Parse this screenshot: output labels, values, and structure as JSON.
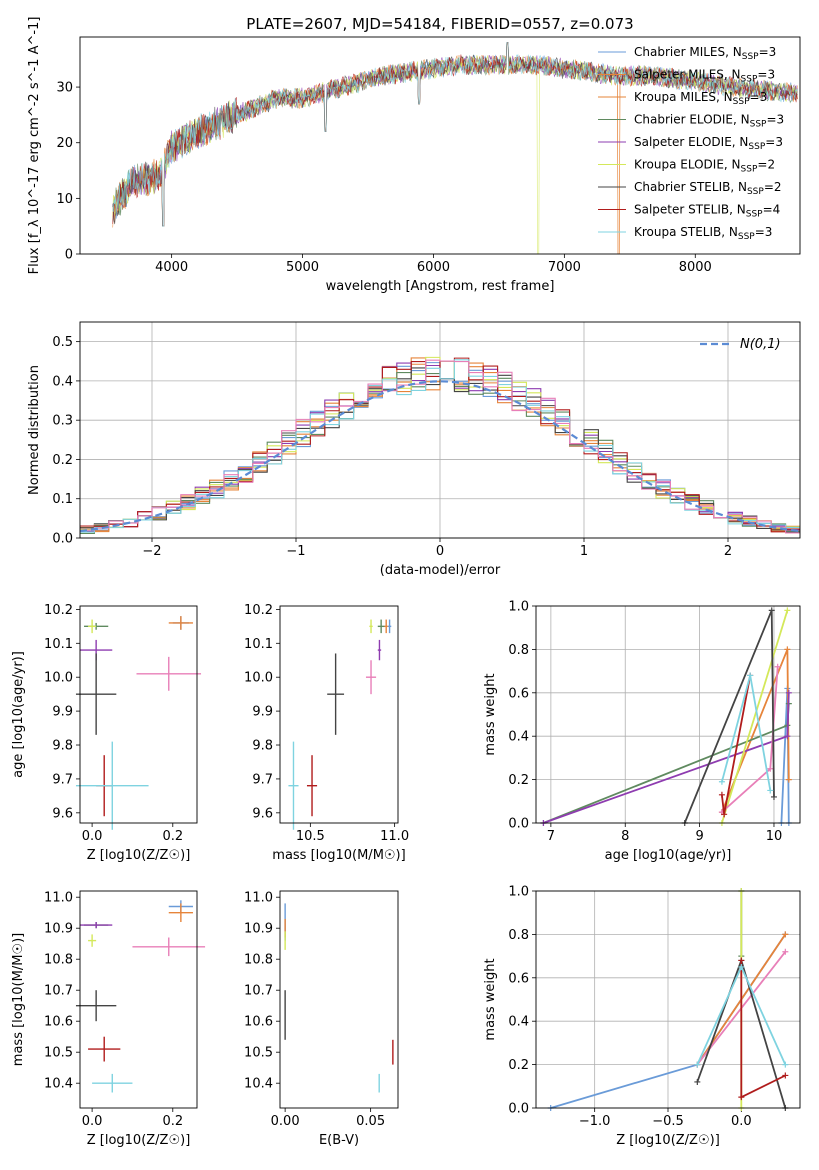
{
  "figure": {
    "title": "PLATE=2607, MJD=54184, FIBERID=0557, z=0.073"
  },
  "colors": {
    "Chabrier MILES": "#6a9bd8",
    "Salpeter MILES": "#e6843a",
    "Kroupa MILES": "#e6843a",
    "Chabrier ELODIE": "#5f8a5f",
    "Salpeter ELODIE": "#8e3cb0",
    "Kroupa ELODIE": "#d4e85a",
    "Chabrier STELIB": "#444444",
    "Salpeter STELIB": "#b01c1c",
    "Kroupa STELIB": "#7fd3e0",
    "pink": "#e87fb8",
    "normal": "#5b8bd4"
  },
  "chart_data": [
    {
      "id": "spectrum",
      "type": "line",
      "xlabel": "wavelength [Angstrom, rest frame]",
      "ylabel": "Flux [f_λ 10^-17 erg cm^-2 s^-1 A^-1]",
      "xlim": [
        3300,
        8800
      ],
      "ylim": [
        0,
        39
      ],
      "xticks": [
        4000,
        5000,
        6000,
        7000,
        8000
      ],
      "yticks": [
        0,
        10,
        20,
        30
      ],
      "legend_position": "top-right",
      "series": [
        {
          "name": "Chabrier MILES, N_SSP=3"
        },
        {
          "name": "Salpeter MILES, N_SSP=3"
        },
        {
          "name": "Kroupa MILES, N_SSP=3"
        },
        {
          "name": "Chabrier ELODIE, N_SSP=3"
        },
        {
          "name": "Salpeter ELODIE, N_SSP=3"
        },
        {
          "name": "Kroupa ELODIE, N_SSP=2"
        },
        {
          "name": "Chabrier STELIB, N_SSP=2"
        },
        {
          "name": "Salpeter STELIB, N_SSP=4"
        },
        {
          "name": "Kroupa STELIB, N_SSP=3"
        }
      ],
      "continuum": {
        "x": [
          3550,
          3700,
          3900,
          4000,
          4200,
          4500,
          4800,
          5000,
          5300,
          5600,
          5900,
          6200,
          6500,
          6800,
          7100,
          7400,
          7700,
          8000,
          8300,
          8700
        ],
        "y": [
          8,
          13,
          14,
          19,
          22,
          25,
          28,
          28,
          30,
          32,
          33,
          34,
          34,
          34,
          33,
          32,
          32,
          31,
          30,
          29
        ]
      },
      "line_features": [
        {
          "x": 3933,
          "y": 5
        },
        {
          "x": 5175,
          "y": 22
        },
        {
          "x": 5890,
          "y": 27
        },
        {
          "x": 6563,
          "y": 38
        },
        {
          "x": 6800,
          "y": 0,
          "series_color": "#d4e85a"
        },
        {
          "x": 7415,
          "y": 0,
          "series_color": "#e6843a"
        }
      ]
    },
    {
      "id": "residuals",
      "type": "step",
      "xlabel": "(data-model)/error",
      "ylabel": "Normed distribution",
      "xlim": [
        -2.5,
        2.5
      ],
      "ylim": [
        0,
        0.55
      ],
      "xticks": [
        -2,
        -1,
        0,
        1,
        2
      ],
      "yticks": [
        0.0,
        0.1,
        0.2,
        0.3,
        0.4,
        0.5
      ],
      "grid": true,
      "legend_position": "top-right",
      "normal_label": "N(0,1)",
      "bin_edges_start": -2.5,
      "bin_width": 0.1
    },
    {
      "id": "age_vs_Z",
      "type": "scatter-errorbar",
      "xlabel": "Z [log10(Z/Z☉)]",
      "ylabel": "age  [log10(age/yr)]",
      "xlim": [
        -0.03,
        0.26
      ],
      "ylim": [
        9.57,
        10.21
      ],
      "xticks": [
        0.0,
        0.2
      ],
      "yticks": [
        9.6,
        9.7,
        9.8,
        9.9,
        10.0,
        10.1,
        10.2
      ],
      "points": [
        {
          "series": "Chabrier MILES",
          "x": 0.22,
          "y": 10.16,
          "xerr": 0.02,
          "yerr": 0.02
        },
        {
          "series": "Salpeter MILES",
          "x": 0.22,
          "y": 10.16,
          "xerr": 0.03,
          "yerr": 0.02
        },
        {
          "series": "Chabrier ELODIE",
          "x": 0.01,
          "y": 10.15,
          "xerr": 0.03,
          "yerr": 0.01
        },
        {
          "series": "Salpeter ELODIE",
          "x": 0.01,
          "y": 10.08,
          "xerr": 0.04,
          "yerr": 0.03
        },
        {
          "series": "Kroupa ELODIE",
          "x": 0.0,
          "y": 10.15,
          "xerr": 0.01,
          "yerr": 0.02
        },
        {
          "series": "pink",
          "x": 0.19,
          "y": 10.01,
          "xerr": 0.08,
          "yerr": 0.05
        },
        {
          "series": "Chabrier STELIB",
          "x": 0.01,
          "y": 9.95,
          "xerr": 0.05,
          "yerr": 0.12
        },
        {
          "series": "Salpeter STELIB",
          "x": 0.03,
          "y": 9.68,
          "xerr": 0.02,
          "yerr": 0.09
        },
        {
          "series": "Kroupa STELIB",
          "x": 0.05,
          "y": 9.68,
          "xerr": 0.09,
          "yerr": 0.13
        }
      ]
    },
    {
      "id": "age_vs_mass",
      "type": "scatter-errorbar",
      "xlabel": "mass [log10(M/M☉)]",
      "xlim": [
        10.32,
        11.02
      ],
      "ylim": [
        9.57,
        10.21
      ],
      "xticks": [
        10.5,
        11.0
      ],
      "yticks": [
        9.6,
        9.7,
        9.8,
        9.9,
        10.0,
        10.1,
        10.2
      ],
      "points": [
        {
          "series": "Chabrier MILES",
          "x": 10.97,
          "y": 10.15,
          "xerr": 0.01,
          "yerr": 0.02
        },
        {
          "series": "Salpeter MILES",
          "x": 10.95,
          "y": 10.15,
          "xerr": 0.01,
          "yerr": 0.02
        },
        {
          "series": "Chabrier ELODIE",
          "x": 10.92,
          "y": 10.15,
          "xerr": 0.02,
          "yerr": 0.02
        },
        {
          "series": "Salpeter ELODIE",
          "x": 10.91,
          "y": 10.08,
          "xerr": 0.01,
          "yerr": 0.03
        },
        {
          "series": "Kroupa ELODIE",
          "x": 10.86,
          "y": 10.15,
          "xerr": 0.01,
          "yerr": 0.02
        },
        {
          "series": "pink",
          "x": 10.86,
          "y": 10.0,
          "xerr": 0.03,
          "yerr": 0.05
        },
        {
          "series": "Chabrier STELIB",
          "x": 10.65,
          "y": 9.95,
          "xerr": 0.05,
          "yerr": 0.12
        },
        {
          "series": "Salpeter STELIB",
          "x": 10.51,
          "y": 9.68,
          "xerr": 0.03,
          "yerr": 0.09
        },
        {
          "series": "Kroupa STELIB",
          "x": 10.4,
          "y": 9.68,
          "xerr": 0.03,
          "yerr": 0.13
        }
      ]
    },
    {
      "id": "weight_vs_age",
      "type": "line",
      "xlabel": "age  [log10(age/yr)]",
      "ylabel": "mass weight",
      "xlim": [
        6.8,
        10.35
      ],
      "ylim": [
        0.0,
        1.0
      ],
      "xticks": [
        7,
        8,
        9,
        10
      ],
      "yticks": [
        0.0,
        0.2,
        0.4,
        0.6,
        0.8,
        1.0
      ],
      "grid": true,
      "series": [
        {
          "name": "Chabrier MILES",
          "x": [
            10.1,
            10.18,
            10.2
          ],
          "y": [
            0.0,
            0.62,
            0.0
          ]
        },
        {
          "name": "Salpeter MILES",
          "x": [
            9.3,
            10.18,
            10.2
          ],
          "y": [
            0.05,
            0.8,
            0.2
          ]
        },
        {
          "name": "Chabrier ELODIE",
          "x": [
            6.9,
            10.18,
            10.2
          ],
          "y": [
            0.0,
            0.45,
            0.55
          ]
        },
        {
          "name": "Salpeter ELODIE",
          "x": [
            6.9,
            10.18,
            10.2
          ],
          "y": [
            0.0,
            0.4,
            0.6
          ]
        },
        {
          "name": "Kroupa ELODIE",
          "x": [
            9.3,
            10.18
          ],
          "y": [
            0.0,
            0.98
          ]
        },
        {
          "name": "pink",
          "x": [
            9.3,
            9.95,
            10.05
          ],
          "y": [
            0.05,
            0.25,
            0.72
          ]
        },
        {
          "name": "Chabrier STELIB",
          "x": [
            8.8,
            9.97,
            10.0
          ],
          "y": [
            0.0,
            0.98,
            0.12
          ]
        },
        {
          "name": "Salpeter STELIB",
          "x": [
            9.3,
            9.33,
            9.68
          ],
          "y": [
            0.13,
            0.04,
            0.68
          ]
        },
        {
          "name": "Kroupa STELIB",
          "x": [
            9.3,
            9.68,
            9.95
          ],
          "y": [
            0.19,
            0.68,
            0.15
          ]
        }
      ]
    },
    {
      "id": "mass_vs_Z",
      "type": "scatter-errorbar",
      "xlabel": "Z [log10(Z/Z☉)]",
      "ylabel": "mass [log10(M/M☉)]",
      "xlim": [
        -0.03,
        0.26
      ],
      "ylim": [
        10.32,
        11.02
      ],
      "xticks": [
        0.0,
        0.2
      ],
      "yticks": [
        10.4,
        10.5,
        10.6,
        10.7,
        10.8,
        10.9,
        11.0
      ],
      "points": [
        {
          "series": "Chabrier MILES",
          "x": 0.22,
          "y": 10.97,
          "xerr": 0.03,
          "yerr": 0.02
        },
        {
          "series": "Salpeter MILES",
          "x": 0.22,
          "y": 10.95,
          "xerr": 0.03,
          "yerr": 0.03
        },
        {
          "series": "Chabrier ELODIE",
          "x": 0.01,
          "y": 10.91,
          "xerr": 0.03,
          "yerr": 0.01
        },
        {
          "series": "Salpeter ELODIE",
          "x": 0.01,
          "y": 10.91,
          "xerr": 0.04,
          "yerr": 0.01
        },
        {
          "series": "Kroupa ELODIE",
          "x": 0.0,
          "y": 10.86,
          "xerr": 0.01,
          "yerr": 0.02
        },
        {
          "series": "pink",
          "x": 0.19,
          "y": 10.84,
          "xerr": 0.09,
          "yerr": 0.03
        },
        {
          "series": "Chabrier STELIB",
          "x": 0.01,
          "y": 10.65,
          "xerr": 0.05,
          "yerr": 0.05
        },
        {
          "series": "Salpeter STELIB",
          "x": 0.03,
          "y": 10.51,
          "xerr": 0.04,
          "yerr": 0.04
        },
        {
          "series": "Kroupa STELIB",
          "x": 0.05,
          "y": 10.4,
          "xerr": 0.05,
          "yerr": 0.03
        }
      ]
    },
    {
      "id": "mass_vs_ebv",
      "type": "scatter-errorbar",
      "xlabel": "E(B-V)",
      "xlim": [
        -0.003,
        0.066
      ],
      "ylim": [
        10.32,
        11.02
      ],
      "xticks": [
        0.0,
        0.05
      ],
      "yticks": [
        10.4,
        10.5,
        10.6,
        10.7,
        10.8,
        10.9,
        11.0
      ],
      "points": [
        {
          "series": "Chabrier MILES",
          "x": 0.0,
          "y": 10.92,
          "xerr": 0.0,
          "yerr": 0.06
        },
        {
          "series": "Salpeter MILES",
          "x": 0.0,
          "y": 10.9,
          "xerr": 0.0,
          "yerr": 0.03
        },
        {
          "series": "Kroupa ELODIE",
          "x": 0.0,
          "y": 10.86,
          "xerr": 0.0,
          "yerr": 0.03
        },
        {
          "series": "Chabrier STELIB",
          "x": 0.0,
          "y": 10.62,
          "xerr": 0.0,
          "yerr": 0.08
        },
        {
          "series": "Salpeter STELIB",
          "x": 0.063,
          "y": 10.5,
          "xerr": 0.0,
          "yerr": 0.04
        },
        {
          "series": "Kroupa STELIB",
          "x": 0.055,
          "y": 10.4,
          "xerr": 0.0,
          "yerr": 0.03
        }
      ]
    },
    {
      "id": "weight_vs_Z",
      "type": "line",
      "xlabel": "Z [log10(Z/Z☉)]",
      "ylabel": "mass weight",
      "xlim": [
        -1.4,
        0.4
      ],
      "ylim": [
        0.0,
        1.0
      ],
      "xticks": [
        -1.0,
        -0.5,
        0.0
      ],
      "yticks": [
        0.0,
        0.2,
        0.4,
        0.6,
        0.8,
        1.0
      ],
      "grid": true,
      "series": [
        {
          "name": "Chabrier MILES",
          "x": [
            -1.3,
            -0.3,
            0.3
          ],
          "y": [
            0.0,
            0.2,
            0.8
          ]
        },
        {
          "name": "Salpeter MILES",
          "x": [
            -0.3,
            0.3
          ],
          "y": [
            0.2,
            0.8
          ]
        },
        {
          "name": "Chabrier ELODIE",
          "x": [
            0.0,
            0.0
          ],
          "y": [
            0.7,
            1.0
          ]
        },
        {
          "name": "Kroupa ELODIE",
          "x": [
            0.0,
            0.0
          ],
          "y": [
            0.0,
            1.0
          ]
        },
        {
          "name": "pink",
          "x": [
            -0.3,
            0.3
          ],
          "y": [
            0.2,
            0.72
          ]
        },
        {
          "name": "Chabrier STELIB",
          "x": [
            -0.3,
            0.0,
            0.3
          ],
          "y": [
            0.12,
            0.68,
            0.0
          ]
        },
        {
          "name": "Salpeter STELIB",
          "x": [
            0.0,
            0.0,
            0.3
          ],
          "y": [
            0.68,
            0.05,
            0.15
          ]
        },
        {
          "name": "Kroupa STELIB",
          "x": [
            -0.3,
            0.0,
            0.3
          ],
          "y": [
            0.2,
            0.65,
            0.2
          ]
        }
      ]
    }
  ]
}
